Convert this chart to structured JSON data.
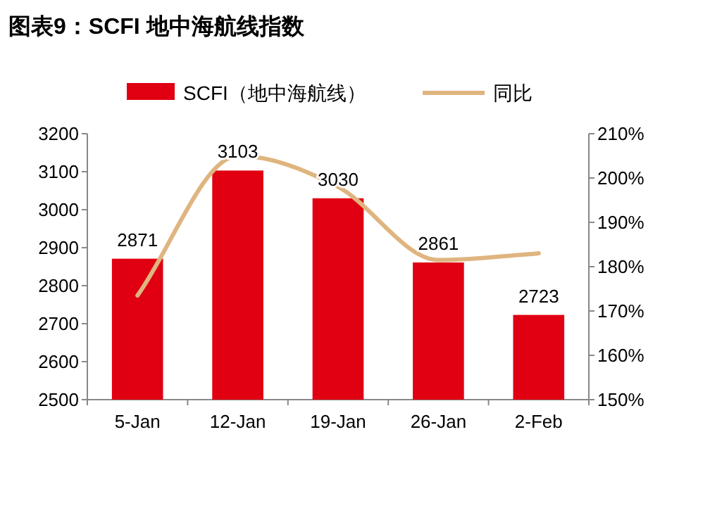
{
  "chart_data": {
    "type": "bar",
    "title": "图表9：SCFI 地中海航线指数",
    "categories": [
      "5-Jan",
      "12-Jan",
      "19-Jan",
      "26-Jan",
      "2-Feb"
    ],
    "series": [
      {
        "name": "SCFI（地中海航线）",
        "color": "#e00012",
        "values": [
          2871,
          3103,
          3030,
          2861,
          2723
        ],
        "value_labels": [
          "2871",
          "3103",
          "3030",
          "2861",
          "2723"
        ]
      },
      {
        "name": "同比",
        "type": "line",
        "axis": "y2",
        "color": "#dfb57f",
        "values": [
          173.5,
          205,
          198,
          181.5,
          183
        ]
      }
    ],
    "ylim": [
      2500,
      3200
    ],
    "yticks": [
      2500,
      2600,
      2700,
      2800,
      2900,
      3000,
      3100,
      3200
    ],
    "y2lim": [
      150,
      210
    ],
    "y2ticks": [
      {
        "value": 150,
        "label": "150%"
      },
      {
        "value": 160,
        "label": "160%"
      },
      {
        "value": 170,
        "label": "170%"
      },
      {
        "value": 180,
        "label": "180%"
      },
      {
        "value": 190,
        "label": "190%"
      },
      {
        "value": 200,
        "label": "200%"
      },
      {
        "value": 210,
        "label": "210%"
      }
    ],
    "legend": "top",
    "grid": false
  }
}
